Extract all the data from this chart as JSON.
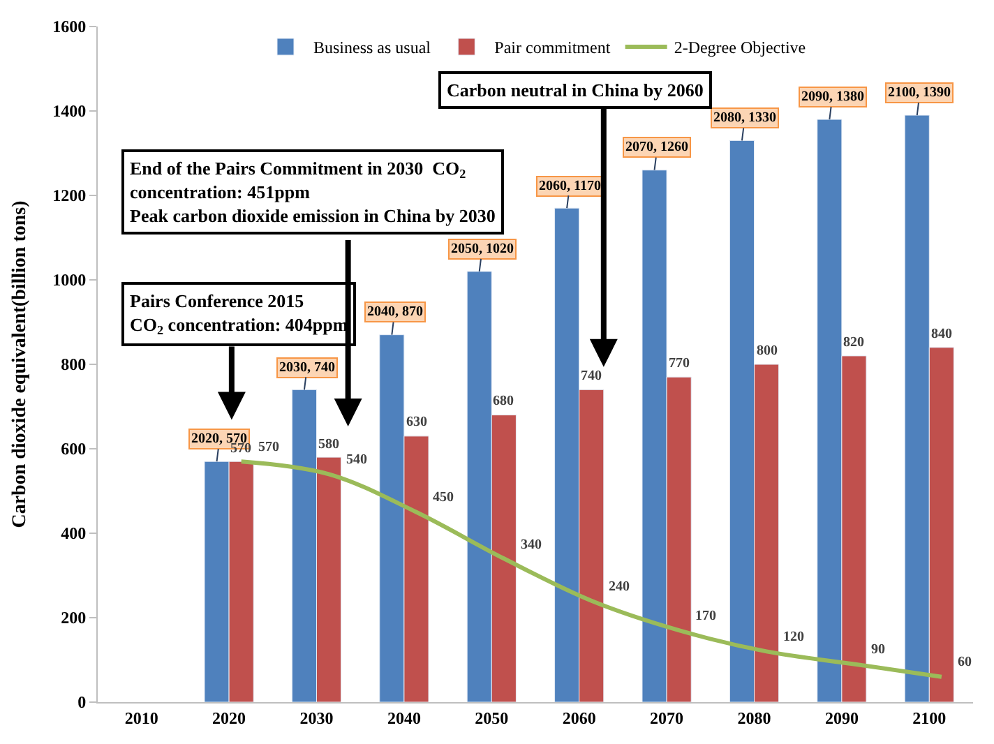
{
  "chart_data": {
    "type": "bar",
    "ylabel": "Carbon dioxide equivalent(billion tons)",
    "categories": [
      "2010",
      "2020",
      "2030",
      "2040",
      "2050",
      "2060",
      "2070",
      "2080",
      "2090",
      "2100"
    ],
    "series": [
      {
        "name": "Business as usual",
        "color": "#4f81bd",
        "values": [
          null,
          570,
          740,
          870,
          1020,
          1170,
          1260,
          1330,
          1380,
          1390
        ],
        "value_labels": [
          null,
          "2020, 570",
          "2030, 740",
          "2040, 870",
          "2050, 1020",
          "2060, 1170",
          "2070, 1260",
          "2080, 1330",
          "2090, 1380",
          "2100, 1390"
        ]
      },
      {
        "name": "Pair commitment",
        "color": "#c0504d",
        "values": [
          null,
          570,
          580,
          630,
          680,
          740,
          770,
          800,
          820,
          840
        ],
        "value_labels": [
          null,
          "570",
          "580",
          "630",
          "680",
          "740",
          "770",
          "800",
          "820",
          "840"
        ]
      },
      {
        "name": "2-Degree Objective",
        "type": "line",
        "color": "#9bbb59",
        "values": [
          null,
          570,
          540,
          450,
          340,
          240,
          170,
          120,
          90,
          60
        ],
        "value_labels": [
          null,
          "570",
          "540",
          "450",
          "340",
          "240",
          "170",
          "120",
          "90",
          "60"
        ]
      }
    ],
    "ylim": [
      0,
      1600
    ],
    "yticks": [
      0,
      200,
      400,
      600,
      800,
      1000,
      1200,
      1400,
      1600
    ],
    "legend": "top",
    "marker": "none",
    "annotations": [
      "Pairs Conference 2015\nCO$_{2}$ concentration: 404ppm",
      "End of the Pairs Commitment in 2030  CO$_{2}$\nconcentration: 451ppm\nPeak carbon dioxide emission in China by 2030",
      "Carbon neutral in China by 2060"
    ]
  }
}
